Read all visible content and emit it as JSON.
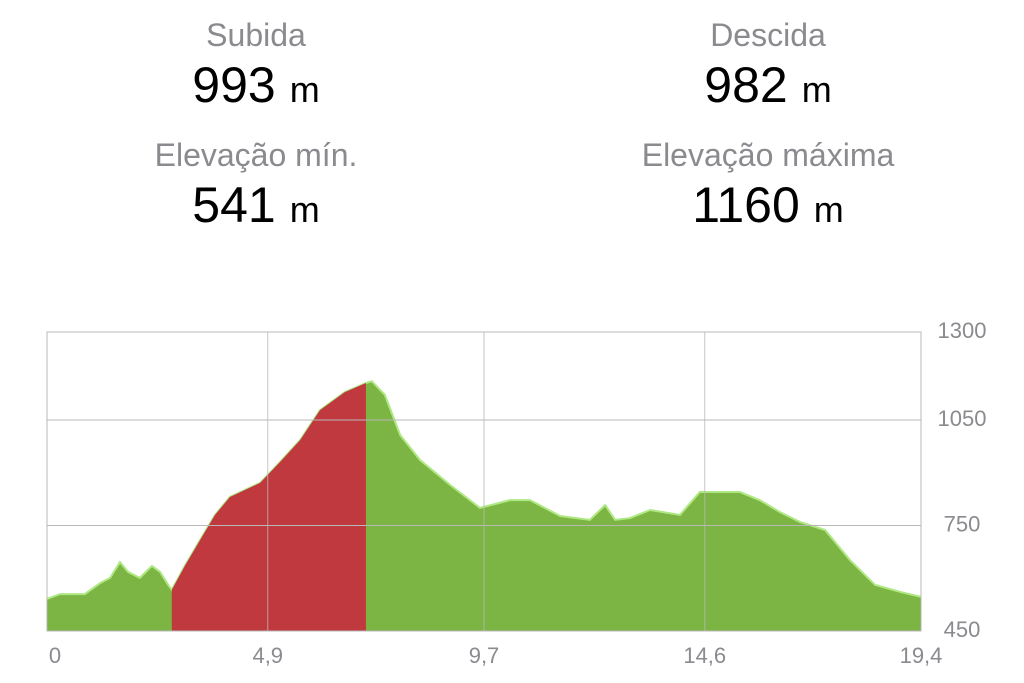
{
  "stats": [
    {
      "label": "Subida",
      "value": 993,
      "unit": "m"
    },
    {
      "label": "Descida",
      "value": 982,
      "unit": "m"
    },
    {
      "label": "Elevação mín.",
      "value": 541,
      "unit": "m"
    },
    {
      "label": "Elevação máxima",
      "value": 1160,
      "unit": "m"
    }
  ],
  "chart_data": {
    "type": "area",
    "xlim": [
      0,
      19.4
    ],
    "xticks": [
      0,
      {
        "value": 4.9,
        "label": "4,9"
      },
      {
        "value": 9.7,
        "label": "9,7"
      },
      {
        "value": 14.6,
        "label": "14,6"
      },
      {
        "value": 19.4,
        "label": "19,4"
      }
    ],
    "ylim": [
      450,
      1300
    ],
    "yticks": [
      450,
      750,
      1050,
      1300
    ],
    "grid": true,
    "series": [
      {
        "color": "#7db544",
        "x": [
          0,
          0.29,
          0.84,
          1.18,
          1.4,
          1.62,
          1.8,
          2.06,
          2.33,
          2.51,
          2.69,
          2.77,
          3.06,
          3.4,
          3.73,
          4.06,
          4.73,
          5.17,
          5.62,
          6.06,
          6.61,
          7.08,
          7.21,
          7.5,
          7.84,
          8.28,
          8.95,
          9.61,
          10.28,
          10.72,
          11.39,
          12.05,
          12.39,
          12.61,
          12.94,
          13.39,
          14.05,
          14.49,
          15.38,
          15.82,
          16.27,
          16.71,
          17.27,
          17.82,
          18.38,
          18.94,
          19.4
        ],
        "values": [
          541,
          555,
          555,
          586,
          601,
          646,
          618,
          601,
          635,
          618,
          581,
          567,
          635,
          709,
          780,
          831,
          871,
          930,
          993,
          1078,
          1129,
          1155,
          1160,
          1121,
          1007,
          936,
          865,
          800,
          822,
          822,
          777,
          766,
          808,
          766,
          771,
          794,
          780,
          845,
          845,
          822,
          788,
          760,
          737,
          652,
          581,
          561,
          547
        ]
      },
      {
        "color": "#c0393e",
        "x": [
          2.77,
          3.06,
          3.4,
          3.73,
          4.06,
          4.73,
          5.17,
          5.62,
          6.06,
          6.61,
          7.08
        ],
        "values": [
          567,
          635,
          709,
          780,
          831,
          871,
          930,
          993,
          1078,
          1129,
          1155
        ]
      }
    ]
  }
}
